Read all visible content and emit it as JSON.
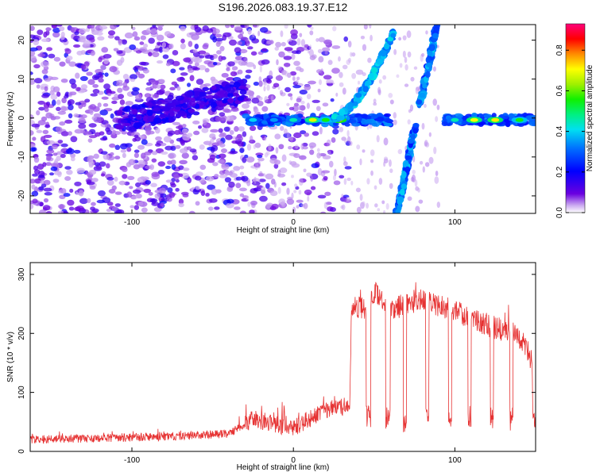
{
  "title": "S196.2026.083.19.37.E12",
  "chart_data": [
    {
      "type": "heatmap",
      "title": "S196.2026.083.19.37.E12",
      "xlabel": "Height of straight line (km)",
      "ylabel": "Frequency (Hz)",
      "xlim": [
        -163,
        150
      ],
      "ylim": [
        -24.5,
        24
      ],
      "xticks": [
        -100,
        0,
        100
      ],
      "yticks": [
        -20,
        -10,
        0,
        10,
        20
      ],
      "colorbar": {
        "label": "Normalized spectral amplitude",
        "range": [
          0,
          0.93
        ],
        "ticks": [
          0.0,
          0.2,
          0.4,
          0.6,
          0.8
        ],
        "colormap": "rainbow (violet-blue-cyan-green-yellow-red-magenta)"
      },
      "features": [
        {
          "name": "noise field",
          "x_range": [
            -163,
            -35
          ],
          "freq_range": [
            -24.5,
            24
          ],
          "amplitude": 0.1
        },
        {
          "name": "horizontal band",
          "x_range": [
            -110,
            150
          ],
          "freq": 0,
          "amplitude_peak": 0.78
        },
        {
          "name": "rising curve",
          "x_range": [
            25,
            62
          ],
          "freq_range": [
            0,
            24
          ],
          "amplitude": 0.3
        },
        {
          "name": "diagonal streak",
          "x_range": [
            63,
            90
          ],
          "freq_range": [
            -24.5,
            24
          ],
          "amplitude": 0.25
        }
      ]
    },
    {
      "type": "line",
      "xlabel": "Height of straight line (km)",
      "ylabel": "SNR (10 * v/v)",
      "xlim": [
        -163,
        150
      ],
      "ylim": [
        0,
        320
      ],
      "xticks": [
        -100,
        0,
        100
      ],
      "yticks": [
        0,
        100,
        200,
        300
      ],
      "color": "#e63232",
      "series": [
        {
          "name": "SNR",
          "x": [
            -163,
            -120,
            -80,
            -40,
            -25,
            -10,
            0,
            10,
            20,
            30,
            35,
            36,
            45,
            50,
            60,
            70,
            80,
            90,
            100,
            110,
            120,
            130,
            140,
            145,
            150
          ],
          "y": [
            20,
            22,
            25,
            30,
            55,
            45,
            40,
            55,
            70,
            75,
            80,
            250,
            240,
            270,
            240,
            250,
            260,
            245,
            240,
            225,
            215,
            205,
            195,
            170,
            120
          ]
        }
      ]
    }
  ]
}
